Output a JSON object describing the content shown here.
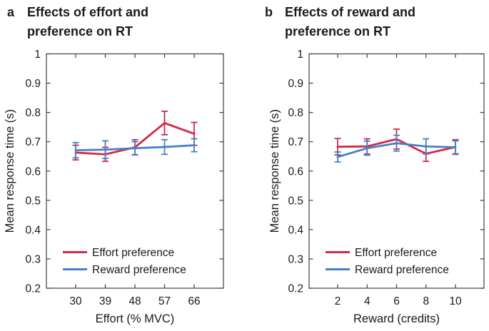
{
  "figure": {
    "background": "#ffffff"
  },
  "colors": {
    "effort_preference": "#d62849",
    "reward_preference": "#4681c4",
    "axis": "#3f3f3f",
    "text": "#1a1a1a"
  },
  "chart_data": [
    {
      "panel_label": "a",
      "title": "Effects of effort and preference on RT",
      "type": "line",
      "x": [
        30,
        39,
        48,
        57,
        66
      ],
      "xticklabels": [
        "30",
        "39",
        "48",
        "57",
        "66"
      ],
      "xlabel": "Effort (% MVC)",
      "ylabel": "Mean response time (s)",
      "ylim": [
        0.2,
        1
      ],
      "yticks": [
        0.2,
        0.3,
        0.4,
        0.5,
        0.6,
        0.7,
        0.8,
        0.9,
        1
      ],
      "yticklabels": [
        "0.2",
        "0.3",
        "0.4",
        "0.5",
        "0.6",
        "0.7",
        "0.8",
        "0.9",
        "1"
      ],
      "grid": false,
      "legend_position": "lower-left",
      "series": [
        {
          "name": "Effort preference",
          "color": "#d62849",
          "values": [
            0.663,
            0.657,
            0.681,
            0.764,
            0.727
          ],
          "errors": [
            0.025,
            0.024,
            0.026,
            0.04,
            0.039
          ]
        },
        {
          "name": "Reward preference",
          "color": "#4681c4",
          "values": [
            0.671,
            0.673,
            0.678,
            0.682,
            0.688
          ],
          "errors": [
            0.026,
            0.03,
            0.022,
            0.025,
            0.022
          ]
        }
      ]
    },
    {
      "panel_label": "b",
      "title": "Effects of reward and preference on RT",
      "type": "line",
      "x": [
        2,
        4,
        6,
        8,
        10
      ],
      "xticklabels": [
        "2",
        "4",
        "6",
        "8",
        "10"
      ],
      "xlabel": "Reward (credits)",
      "ylabel": "Mean response time (s)",
      "ylim": [
        0.2,
        1
      ],
      "yticks": [
        0.2,
        0.3,
        0.4,
        0.5,
        0.6,
        0.7,
        0.8,
        0.9,
        1
      ],
      "yticklabels": [
        "0.2",
        "0.3",
        "0.4",
        "0.5",
        "0.6",
        "0.7",
        "0.8",
        "0.9",
        "1"
      ],
      "grid": false,
      "legend_position": "lower-left",
      "series": [
        {
          "name": "Effort preference",
          "color": "#d62849",
          "values": [
            0.683,
            0.684,
            0.709,
            0.659,
            0.682
          ],
          "errors": [
            0.028,
            0.026,
            0.034,
            0.026,
            0.025
          ]
        },
        {
          "name": "Reward preference",
          "color": "#4681c4",
          "values": [
            0.648,
            0.678,
            0.695,
            0.684,
            0.681
          ],
          "errors": [
            0.017,
            0.024,
            0.027,
            0.026,
            0.022
          ]
        }
      ]
    }
  ]
}
